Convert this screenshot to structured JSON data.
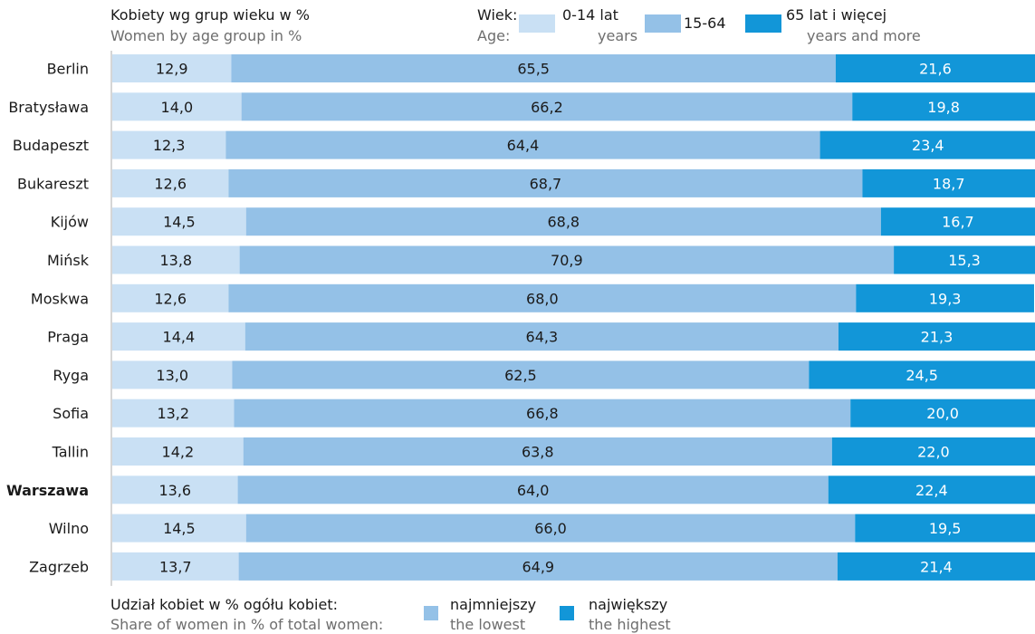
{
  "header": {
    "title_pl": "Kobiety wg grup wieku w %",
    "title_en": "Women by age group in %",
    "legend_label_pl": "Wiek:",
    "legend_label_en": "Age:",
    "legend_items": [
      {
        "pl": "0-14 lat",
        "en": "years",
        "color": "#c9e0f4"
      },
      {
        "pl": "15-64",
        "en": "",
        "color": "#94c1e7"
      },
      {
        "pl": "65 lat i więcej",
        "en": "years and more",
        "color": "#1296d8"
      }
    ]
  },
  "footer": {
    "label_pl": "Udział kobiet w % ogółu kobiet:",
    "label_en": "Share of women in % of total women:",
    "lowest_pl": "najmniejszy",
    "lowest_en": "the lowest",
    "highest_pl": "największy",
    "highest_en": "the highest"
  },
  "chart_data": {
    "type": "bar",
    "orientation": "horizontal",
    "stacked": true,
    "normalized": true,
    "categories": [
      "Berlin",
      "Bratysława",
      "Budapeszt",
      "Bukareszt",
      "Kijów",
      "Mińsk",
      "Moskwa",
      "Praga",
      "Ryga",
      "Sofia",
      "Tallin",
      "Warszawa",
      "Wilno",
      "Zagrzeb"
    ],
    "highlight_category": "Warszawa",
    "series": [
      {
        "name": "0-14 lat",
        "values": [
          12.9,
          14.0,
          12.3,
          12.6,
          14.5,
          13.8,
          12.6,
          14.4,
          13.0,
          13.2,
          14.2,
          13.6,
          14.5,
          13.7
        ],
        "labels": [
          "12,9",
          "14,0",
          "12,3",
          "12,6",
          "14,5",
          "13,8",
          "12,6",
          "14,4",
          "13,0",
          "13,2",
          "14,2",
          "13,6",
          "14,5",
          "13,7"
        ],
        "color": "#c9e0f4"
      },
      {
        "name": "15-64",
        "values": [
          65.5,
          66.2,
          64.4,
          68.7,
          68.8,
          70.9,
          68.0,
          64.3,
          62.5,
          66.8,
          63.8,
          64.0,
          66.0,
          64.9
        ],
        "labels": [
          "65,5",
          "66,2",
          "64,4",
          "68,7",
          "68,8",
          "70,9",
          "68,0",
          "64,3",
          "62,5",
          "66,8",
          "63,8",
          "64,0",
          "66,0",
          "64,9"
        ],
        "color": "#94c1e7"
      },
      {
        "name": "65 lat i więcej",
        "values": [
          21.6,
          19.8,
          23.4,
          18.7,
          16.7,
          15.3,
          19.3,
          21.3,
          24.5,
          20.0,
          22.0,
          22.4,
          19.5,
          21.4
        ],
        "labels": [
          "21,6",
          "19,8",
          "23,4",
          "18,7",
          "16,7",
          "15,3",
          "19,3",
          "21,3",
          "24,5",
          "20,0",
          "22,0",
          "22,4",
          "19,5",
          "21,4"
        ],
        "color": "#1296d8"
      }
    ],
    "xlim": [
      0,
      100
    ],
    "text_color": "#1a1a1a",
    "value_label_color_dark": "#ffffff"
  }
}
